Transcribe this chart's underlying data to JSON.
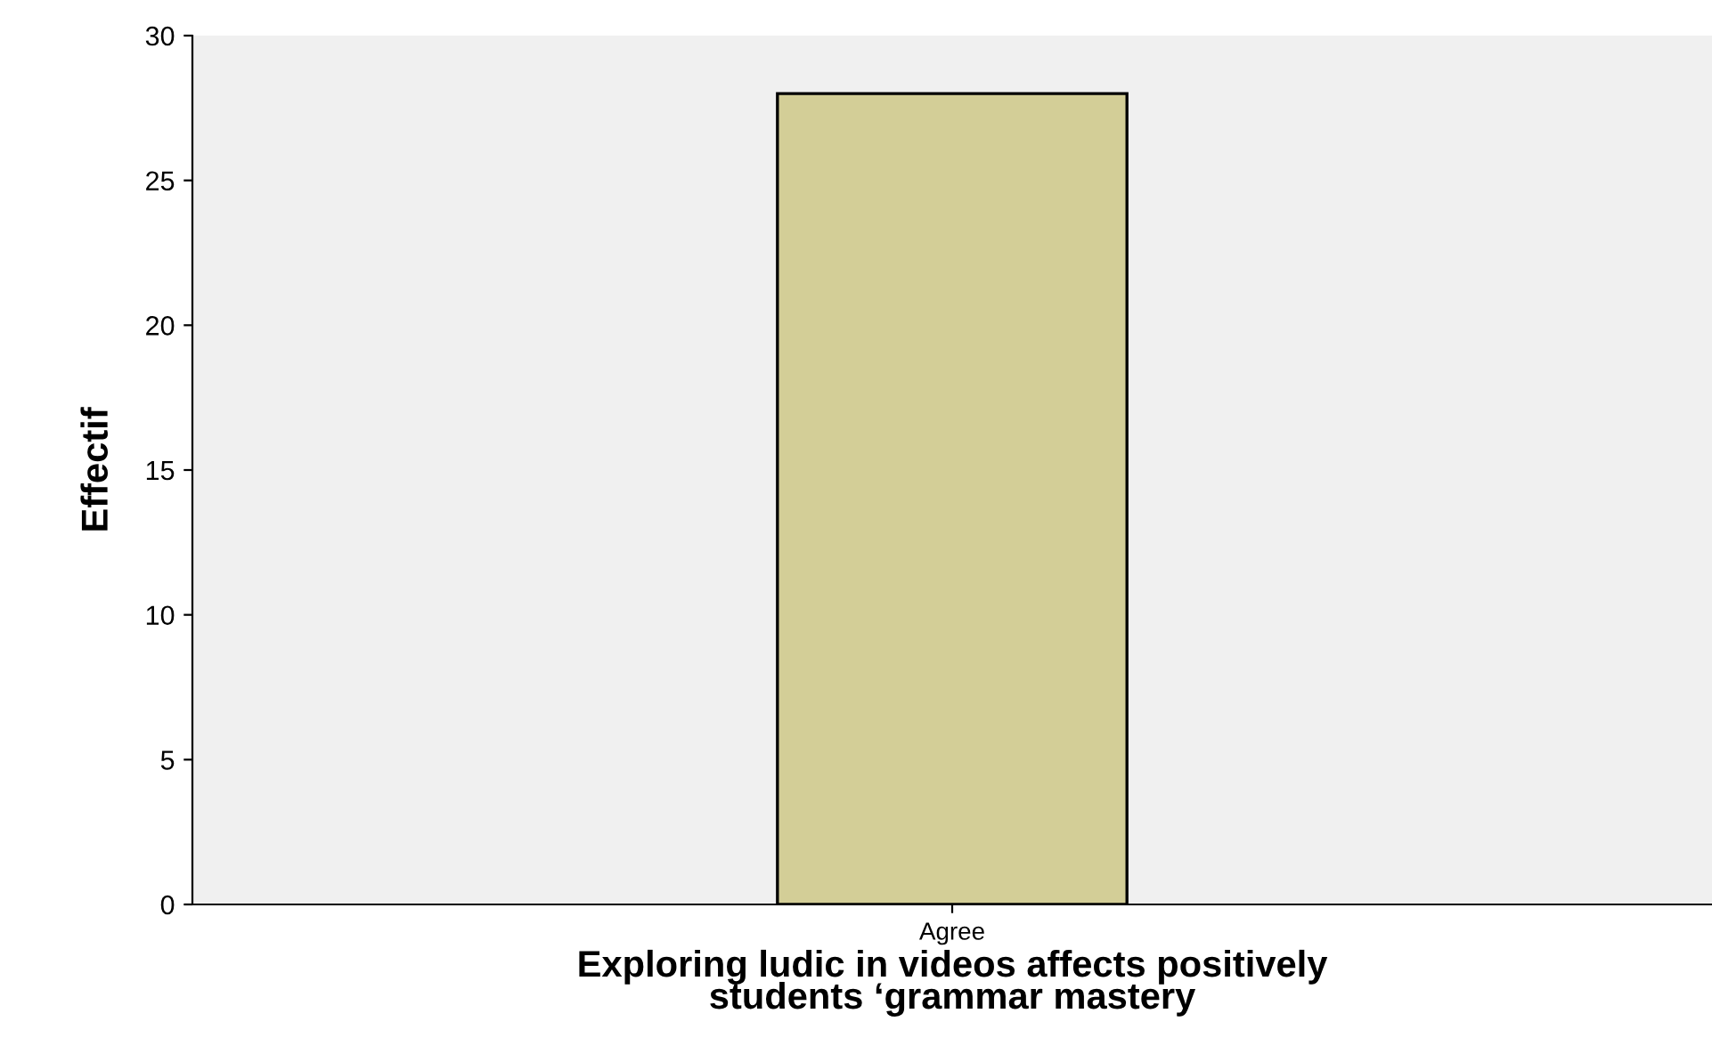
{
  "chart_data": {
    "type": "bar",
    "xlabel": "Exploring ludic in videos affects positively\nstudents ‘grammar mastery",
    "ylabel": "Effectif",
    "categories": [
      "Agree"
    ],
    "values": [
      28
    ],
    "color": "#d3ce97",
    "ylim": [
      0,
      30
    ],
    "yticks": [
      0,
      5,
      10,
      15,
      20,
      25,
      30
    ],
    "grid": false
  }
}
